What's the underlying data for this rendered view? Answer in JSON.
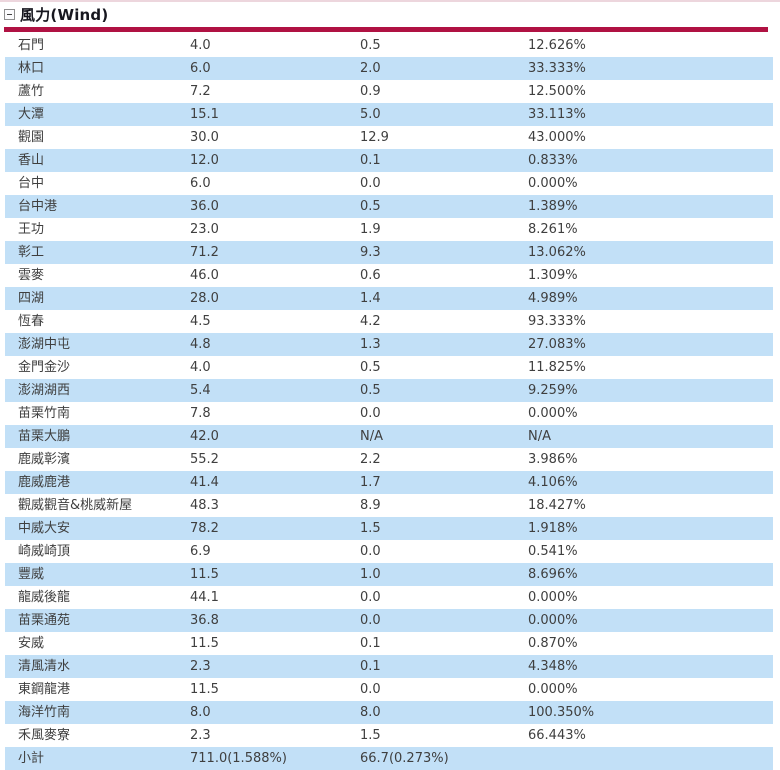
{
  "colors": {
    "accent_bar": "#b01243",
    "row_alt": "#c2e0f7",
    "row_text": "#3f3f3f",
    "header_text": "#17171f",
    "top_line": "#edd6dd"
  },
  "section": {
    "title": "風力(Wind)"
  },
  "table": {
    "rows": [
      {
        "name": "石門",
        "capacity": "4.0",
        "output": "0.5",
        "percent": "12.626%"
      },
      {
        "name": "林口",
        "capacity": "6.0",
        "output": "2.0",
        "percent": "33.333%"
      },
      {
        "name": "蘆竹",
        "capacity": "7.2",
        "output": "0.9",
        "percent": "12.500%"
      },
      {
        "name": "大潭",
        "capacity": "15.1",
        "output": "5.0",
        "percent": "33.113%"
      },
      {
        "name": "觀園",
        "capacity": "30.0",
        "output": "12.9",
        "percent": "43.000%"
      },
      {
        "name": "香山",
        "capacity": "12.0",
        "output": "0.1",
        "percent": "0.833%"
      },
      {
        "name": "台中",
        "capacity": "6.0",
        "output": "0.0",
        "percent": "0.000%"
      },
      {
        "name": "台中港",
        "capacity": "36.0",
        "output": "0.5",
        "percent": "1.389%"
      },
      {
        "name": "王功",
        "capacity": "23.0",
        "output": "1.9",
        "percent": "8.261%"
      },
      {
        "name": "彰工",
        "capacity": "71.2",
        "output": "9.3",
        "percent": "13.062%"
      },
      {
        "name": "雲麥",
        "capacity": "46.0",
        "output": "0.6",
        "percent": "1.309%"
      },
      {
        "name": "四湖",
        "capacity": "28.0",
        "output": "1.4",
        "percent": "4.989%"
      },
      {
        "name": "恆春",
        "capacity": "4.5",
        "output": "4.2",
        "percent": "93.333%"
      },
      {
        "name": "澎湖中屯",
        "capacity": "4.8",
        "output": "1.3",
        "percent": "27.083%"
      },
      {
        "name": "金門金沙",
        "capacity": "4.0",
        "output": "0.5",
        "percent": "11.825%"
      },
      {
        "name": "澎湖湖西",
        "capacity": "5.4",
        "output": "0.5",
        "percent": "9.259%"
      },
      {
        "name": "苗栗竹南",
        "capacity": "7.8",
        "output": "0.0",
        "percent": "0.000%"
      },
      {
        "name": "苗栗大鵬",
        "capacity": "42.0",
        "output": "N/A",
        "percent": "N/A"
      },
      {
        "name": "鹿威彰濱",
        "capacity": "55.2",
        "output": "2.2",
        "percent": "3.986%"
      },
      {
        "name": "鹿威鹿港",
        "capacity": "41.4",
        "output": "1.7",
        "percent": "4.106%"
      },
      {
        "name": "觀威觀音&桃威新屋",
        "capacity": "48.3",
        "output": "8.9",
        "percent": "18.427%"
      },
      {
        "name": "中威大安",
        "capacity": "78.2",
        "output": "1.5",
        "percent": "1.918%"
      },
      {
        "name": "崎威崎頂",
        "capacity": "6.9",
        "output": "0.0",
        "percent": "0.541%"
      },
      {
        "name": "豐威",
        "capacity": "11.5",
        "output": "1.0",
        "percent": "8.696%"
      },
      {
        "name": "龍威後龍",
        "capacity": "44.1",
        "output": "0.0",
        "percent": "0.000%"
      },
      {
        "name": "苗栗通苑",
        "capacity": "36.8",
        "output": "0.0",
        "percent": "0.000%"
      },
      {
        "name": "安威",
        "capacity": "11.5",
        "output": "0.1",
        "percent": "0.870%"
      },
      {
        "name": "清風清水",
        "capacity": "2.3",
        "output": "0.1",
        "percent": "4.348%"
      },
      {
        "name": "東鋼龍港",
        "capacity": "11.5",
        "output": "0.0",
        "percent": "0.000%"
      },
      {
        "name": "海洋竹南",
        "capacity": "8.0",
        "output": "8.0",
        "percent": "100.350%"
      },
      {
        "name": "禾風麥寮",
        "capacity": "2.3",
        "output": "1.5",
        "percent": "66.443%"
      },
      {
        "name": "小計",
        "capacity": "711.0(1.588%)",
        "output": "66.7(0.273%)",
        "percent": ""
      }
    ]
  }
}
